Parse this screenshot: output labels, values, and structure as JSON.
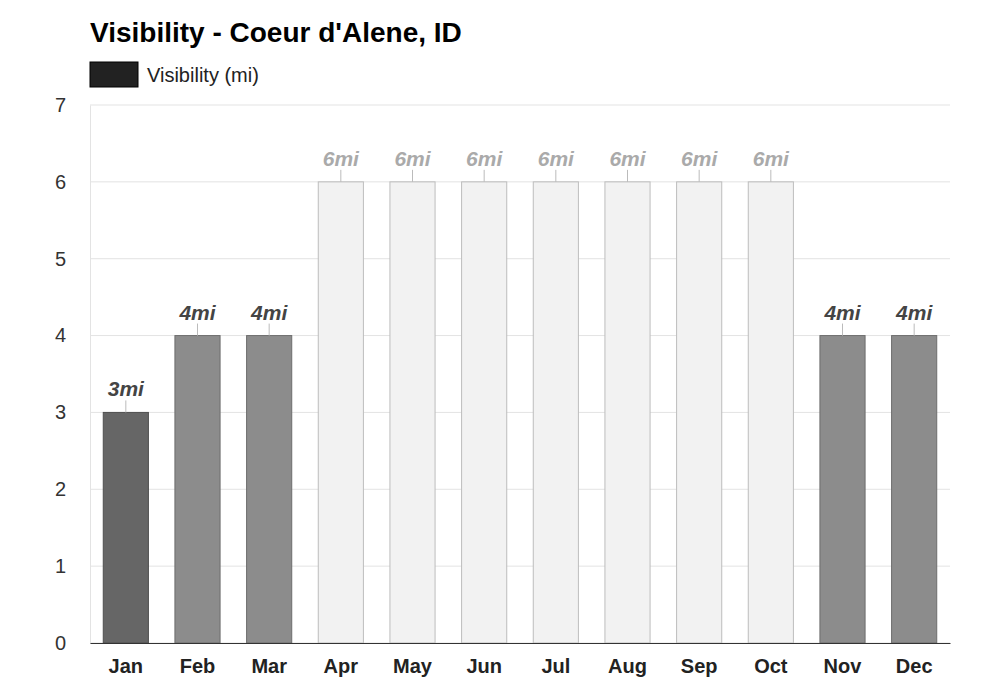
{
  "chart_data": {
    "type": "bar",
    "title": "Visibility - Coeur d'Alene, ID",
    "categories": [
      "Jan",
      "Feb",
      "Mar",
      "Apr",
      "May",
      "Jun",
      "Jul",
      "Aug",
      "Sep",
      "Oct",
      "Nov",
      "Dec"
    ],
    "series": [
      {
        "name": "Visibility (mi)",
        "color": "#222222",
        "colors": [
          "#666666",
          "#8c8c8c",
          "#8c8c8c",
          "#f2f2f2",
          "#f2f2f2",
          "#f2f2f2",
          "#f2f2f2",
          "#f2f2f2",
          "#f2f2f2",
          "#f2f2f2",
          "#8c8c8c",
          "#8c8c8c"
        ],
        "values": [
          3,
          4,
          4,
          6,
          6,
          6,
          6,
          6,
          6,
          6,
          4,
          4
        ],
        "value_labels": [
          "3mi",
          "4mi",
          "4mi",
          "6mi",
          "6mi",
          "6mi",
          "6mi",
          "6mi",
          "6mi",
          "6mi",
          "4mi",
          "4mi"
        ]
      }
    ],
    "ylim": [
      0,
      7
    ],
    "yticks": [
      0,
      1,
      2,
      3,
      4,
      5,
      6,
      7
    ],
    "grid": true,
    "legend": "top-left",
    "data_labels": true
  }
}
